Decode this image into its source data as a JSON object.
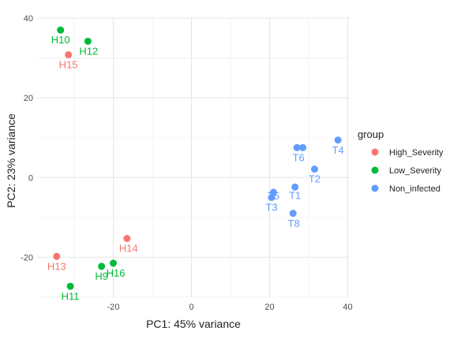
{
  "chart_data": {
    "type": "scatter",
    "xlabel": "PC1: 45% variance",
    "ylabel": "PC2: 23% variance",
    "xlim": [
      -39.5,
      40.5
    ],
    "ylim": [
      -30,
      40.2
    ],
    "x_ticks": [
      -20,
      0,
      20,
      40
    ],
    "y_ticks": [
      -20,
      0,
      20,
      40
    ],
    "x_minor": [
      -30,
      -10,
      10,
      30
    ],
    "y_minor": [
      -30,
      -10,
      10,
      30
    ],
    "grid": true,
    "legend": {
      "title": "group",
      "position": "right"
    },
    "series": [
      {
        "name": "High_Severity",
        "color": "#F8766D",
        "points": [
          {
            "label": "H15",
            "x": -31.5,
            "y": 30.8
          },
          {
            "label": "H14",
            "x": -16.5,
            "y": -15.3
          },
          {
            "label": "H13",
            "x": -34.5,
            "y": -19.8
          }
        ]
      },
      {
        "name": "Low_Severity",
        "color": "#00BA38",
        "points": [
          {
            "label": "H10",
            "x": -33.5,
            "y": 37.0
          },
          {
            "label": "H12",
            "x": -26.5,
            "y": 34.2
          },
          {
            "label": "H9",
            "x": -23.0,
            "y": -22.3
          },
          {
            "label": "H16",
            "x": -20.0,
            "y": -21.5
          },
          {
            "label": "H11",
            "x": -31.0,
            "y": -27.3
          }
        ]
      },
      {
        "name": "Non_infected",
        "color": "#619CFF",
        "points": [
          {
            "label": "T4",
            "x": 37.5,
            "y": 9.4
          },
          {
            "label": "T6",
            "x": 27.0,
            "y": 7.5
          },
          {
            "label": "T7",
            "x": 28.5,
            "y": 7.5
          },
          {
            "label": "T2",
            "x": 31.5,
            "y": 2.1
          },
          {
            "label": "T1",
            "x": 26.5,
            "y": -2.4
          },
          {
            "label": "T5",
            "x": 21.0,
            "y": -3.7
          },
          {
            "label": "T3",
            "x": 20.5,
            "y": -5.0
          },
          {
            "label": "T8",
            "x": 26.0,
            "y": -9.0
          }
        ]
      }
    ]
  }
}
